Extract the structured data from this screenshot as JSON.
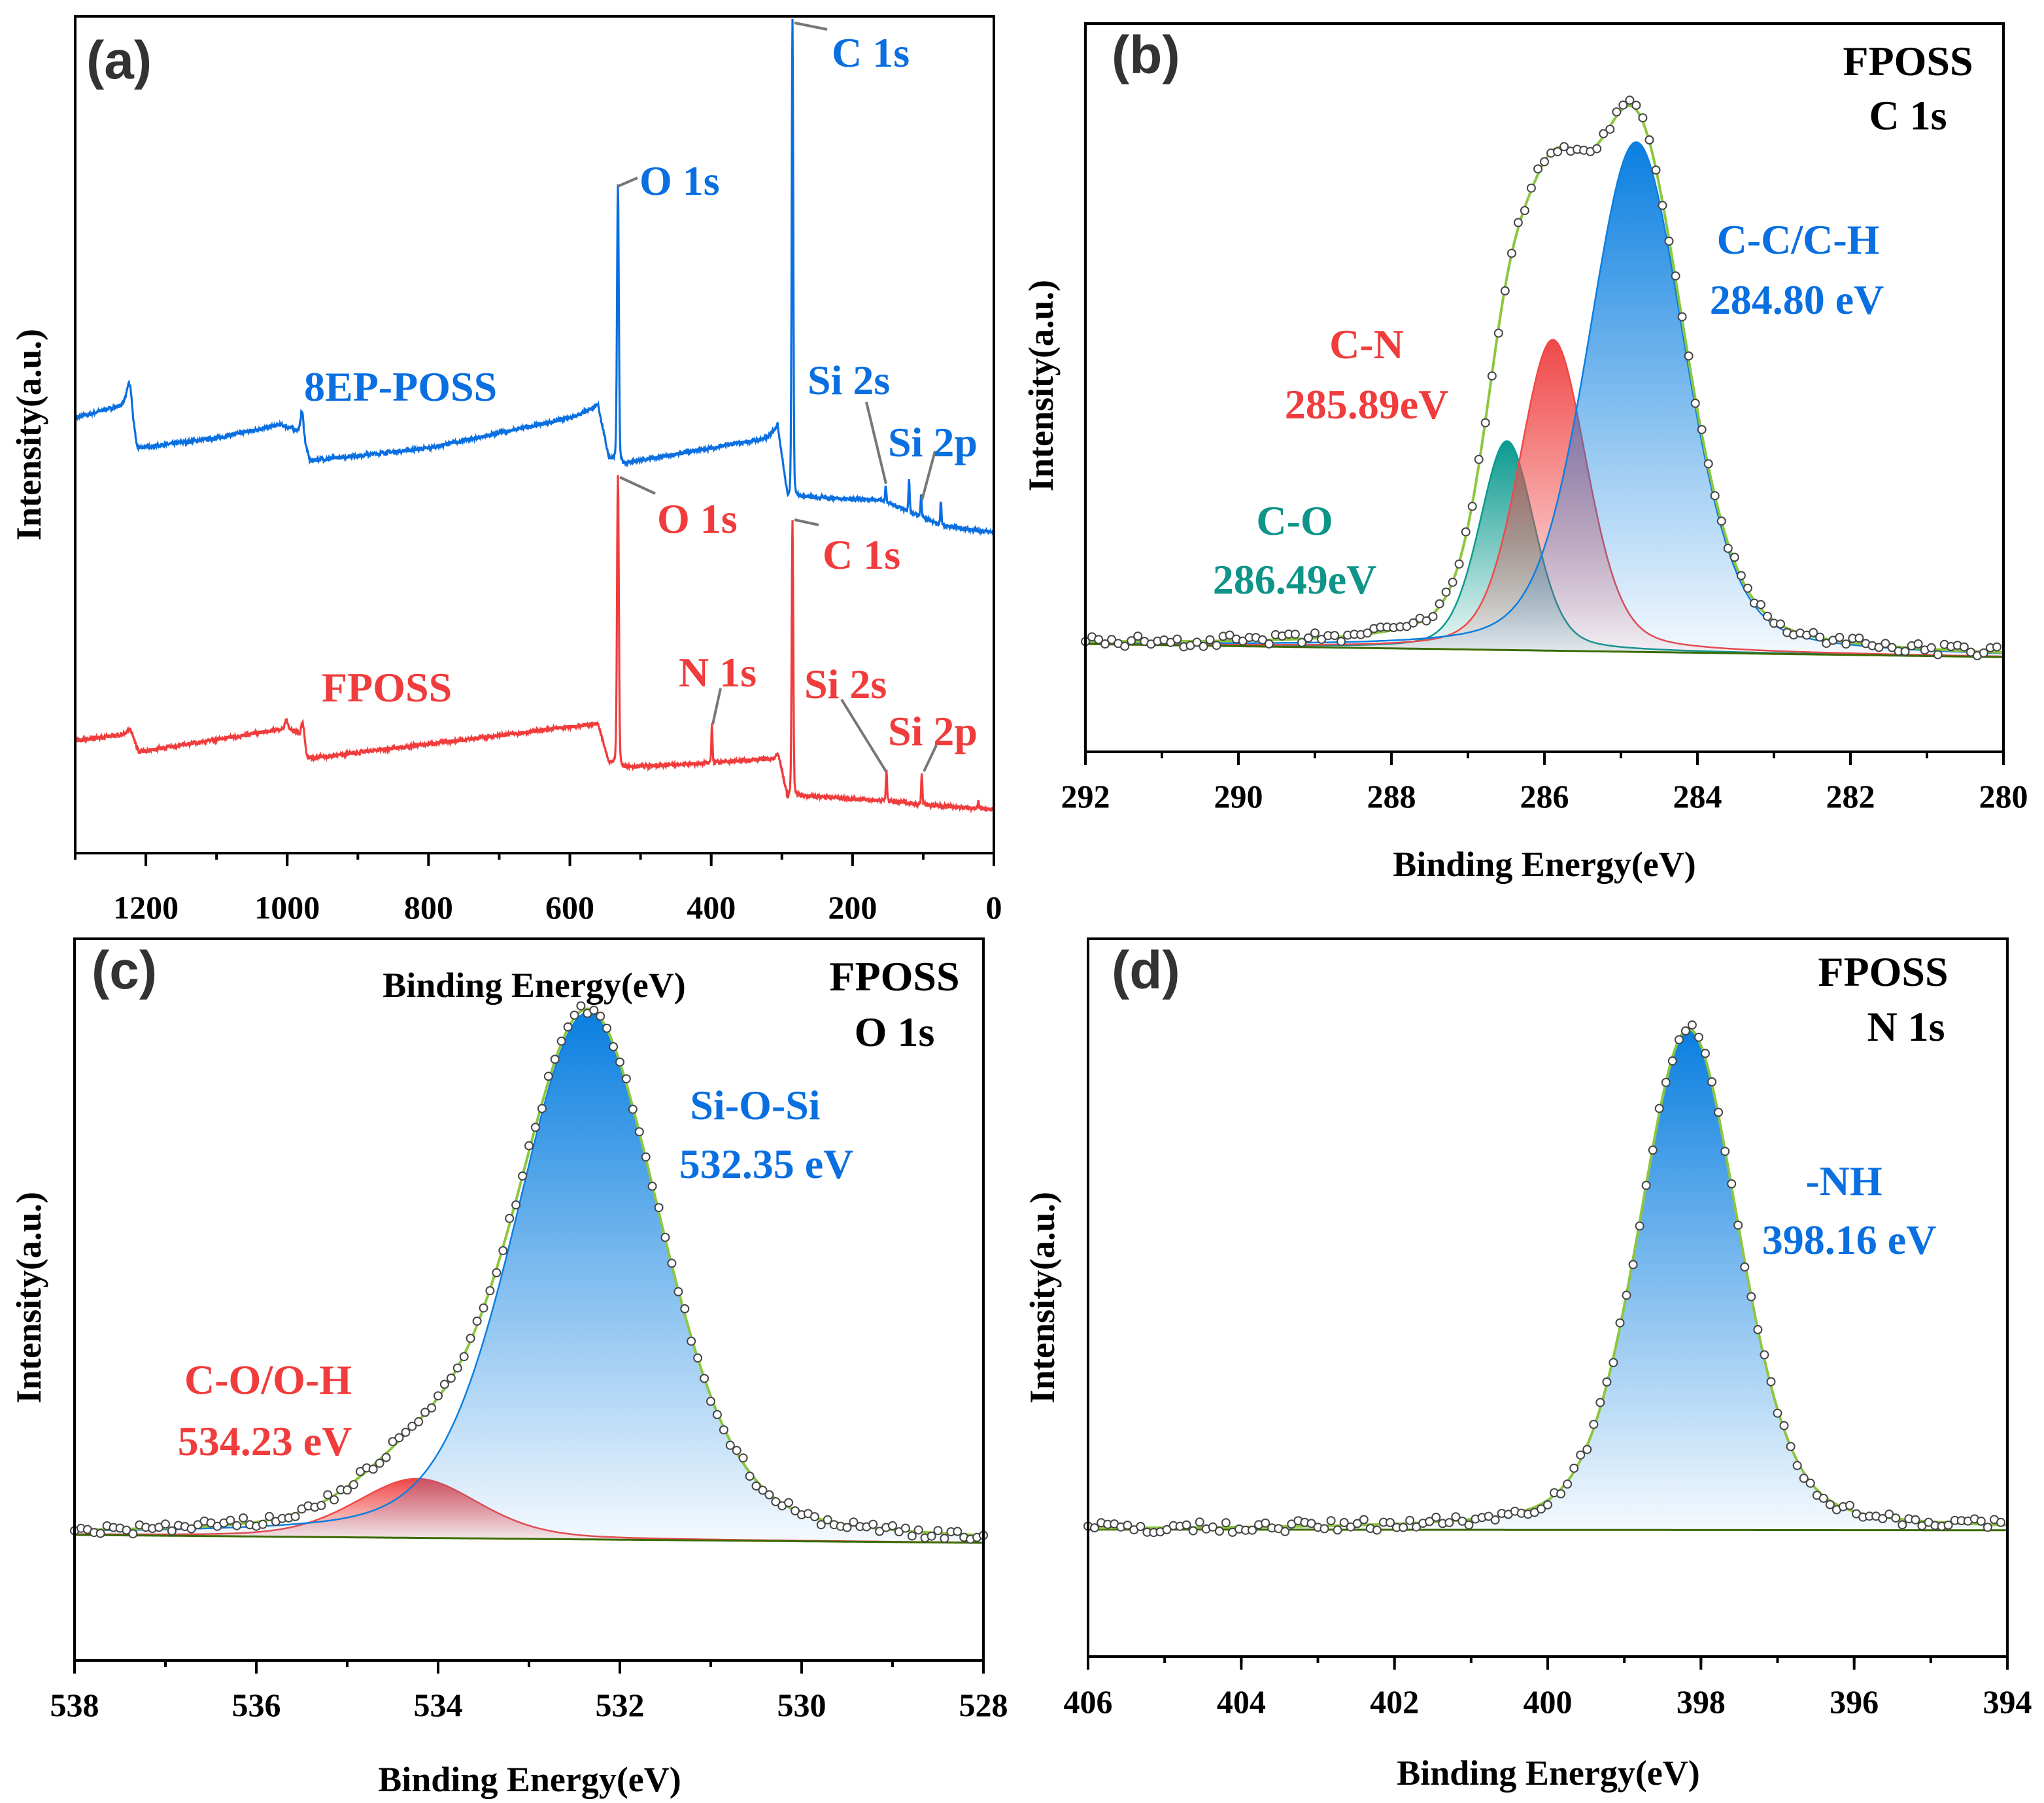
{
  "chart_data": [
    {
      "panel": "(a)",
      "type": "line",
      "xlabel": "Binding Energy(eV)",
      "ylabel": "Intensity(a.u.)",
      "xlim": [
        1300,
        0
      ],
      "ylim": [
        0,
        100
      ],
      "xticks": [
        1200,
        1000,
        800,
        600,
        400,
        200,
        0
      ],
      "minor_step": 100,
      "series": [
        {
          "name": "8EP-POSS",
          "color": "#0a6fe0",
          "baseline": [
            [
              1300,
              52
            ],
            [
              1235,
              53.5
            ],
            [
              1225,
              55
            ],
            [
              1212,
              48.4
            ],
            [
              1100,
              49.6
            ],
            [
              1010,
              51.2
            ],
            [
              985,
              50.5
            ],
            [
              975,
              49
            ],
            [
              968,
              46.9
            ],
            [
              800,
              48.4
            ],
            [
              600,
              52
            ],
            [
              560,
              53.5
            ],
            [
              545,
              47.3
            ],
            [
              528,
              46.5
            ],
            [
              320,
              49.6
            ],
            [
              306,
              51.2
            ],
            [
              292,
              42.5
            ],
            [
              280,
              42.6
            ],
            [
              160,
              42.2
            ],
            [
              115,
              40.6
            ],
            [
              75,
              39.2
            ],
            [
              0,
              38.3
            ]
          ],
          "peaks": [
            [
              1222,
              2.2,
              6
            ],
            [
              979,
              3.2,
              5
            ],
            [
              532,
              33,
              3
            ],
            [
              285,
              57,
              2.6
            ],
            [
              153,
              2,
              2
            ],
            [
              120,
              3.8,
              2
            ],
            [
              103,
              2.5,
              2
            ],
            [
              75,
              3,
              2
            ]
          ]
        },
        {
          "name": "FPOSS",
          "color": "#f03c3c",
          "baseline": [
            [
              1300,
              13.4
            ],
            [
              1232,
              14.2
            ],
            [
              1222,
              14.8
            ],
            [
              1210,
              12.1
            ],
            [
              1010,
              14.8
            ],
            [
              985,
              14.6
            ],
            [
              970,
              11.3
            ],
            [
              560,
              15.5
            ],
            [
              545,
              10.9
            ],
            [
              528,
              10.2
            ],
            [
              400,
              10.8
            ],
            [
              312,
              11.3
            ],
            [
              305,
              11.8
            ],
            [
              292,
              6.6
            ],
            [
              280,
              6.9
            ],
            [
              150,
              6.25
            ],
            [
              100,
              5.8
            ],
            [
              0,
              5.2
            ]
          ],
          "peaks": [
            [
              1001,
              1.2,
              5
            ],
            [
              978,
              2.6,
              5
            ],
            [
              532,
              35,
              3
            ],
            [
              399,
              4.6,
              2
            ],
            [
              285,
              33,
              2.6
            ],
            [
              152,
              3.5,
              2
            ],
            [
              102,
              3.8,
              2
            ],
            [
              22,
              0.8,
              2
            ]
          ]
        }
      ],
      "annotations": {
        "blue_c1s": "C 1s",
        "blue_o1s": "O 1s",
        "blue_name": "8EP-POSS",
        "blue_si2s": "Si 2s",
        "blue_si2p": "Si 2p",
        "red_o1s": "O 1s",
        "red_c1s": "C 1s",
        "red_name": "FPOSS",
        "red_n1s": "N 1s",
        "red_si2s": "Si 2s",
        "red_si2p": "Si 2p"
      }
    },
    {
      "panel": "(b)",
      "type": "area",
      "title": [
        "FPOSS",
        "C 1s"
      ],
      "xlabel": "Binding Energy(eV)",
      "ylabel": "Intensity(a.u.)",
      "xlim": [
        292,
        280
      ],
      "ylim": [
        0,
        100
      ],
      "xticks": [
        292,
        290,
        288,
        286,
        284,
        282,
        280
      ],
      "minor_step": 1,
      "background": [
        [
          292,
          14.8
        ],
        [
          280,
          13.0
        ]
      ],
      "components": [
        {
          "label": "C-C/C-H",
          "energy_label": "284.80 eV",
          "center": 284.8,
          "height": 70,
          "fwhm": 1.5,
          "color": "#0a7fe0"
        },
        {
          "label": "C-N",
          "energy_label": "285.89eV",
          "center": 285.89,
          "height": 42.7,
          "fwhm": 1.05,
          "color": "#f04848"
        },
        {
          "label": "C-O",
          "energy_label": "286.49eV",
          "center": 286.49,
          "height": 28.7,
          "fwhm": 0.85,
          "color": "#0a9a8f"
        }
      ],
      "envelope_color": "#8dc63f"
    },
    {
      "panel": "(c)",
      "type": "area",
      "title": [
        "FPOSS",
        "O 1s"
      ],
      "xlabel": "Binding Energy(eV)",
      "ylabel": "Intensity(a.u.)",
      "xlim": [
        538,
        528
      ],
      "ylim": [
        0,
        100
      ],
      "xticks": [
        538,
        536,
        534,
        532,
        530,
        528
      ],
      "minor_step": 1,
      "background": [
        [
          538,
          17.4
        ],
        [
          528,
          16.3
        ]
      ],
      "components": [
        {
          "label": "Si-O-Si",
          "energy_label": "532.35 eV",
          "center": 532.35,
          "height": 73,
          "fwhm": 1.9,
          "color": "#0a7fe0"
        },
        {
          "label": "C-O/O-H",
          "energy_label": "534.23 eV",
          "center": 534.23,
          "height": 8.2,
          "fwhm": 1.6,
          "color": "#f04848"
        }
      ],
      "envelope_color": "#8dc63f"
    },
    {
      "panel": "(d)",
      "type": "area",
      "title": [
        "FPOSS",
        "N 1s"
      ],
      "xlabel": "Binding Energy(eV)",
      "ylabel": "Intensity(a.u.)",
      "xlim": [
        406,
        394
      ],
      "ylim": [
        0,
        100
      ],
      "xticks": [
        406,
        404,
        402,
        400,
        398,
        396,
        394
      ],
      "minor_step": 1,
      "background": [
        [
          406,
          17.7
        ],
        [
          394,
          17.6
        ]
      ],
      "components": [
        {
          "label": "-NH",
          "energy_label": "398.16 eV",
          "center": 398.16,
          "height": 69.8,
          "fwhm": 1.55,
          "color": "#0a7fe0"
        }
      ],
      "envelope_color": "#8dc63f"
    }
  ]
}
